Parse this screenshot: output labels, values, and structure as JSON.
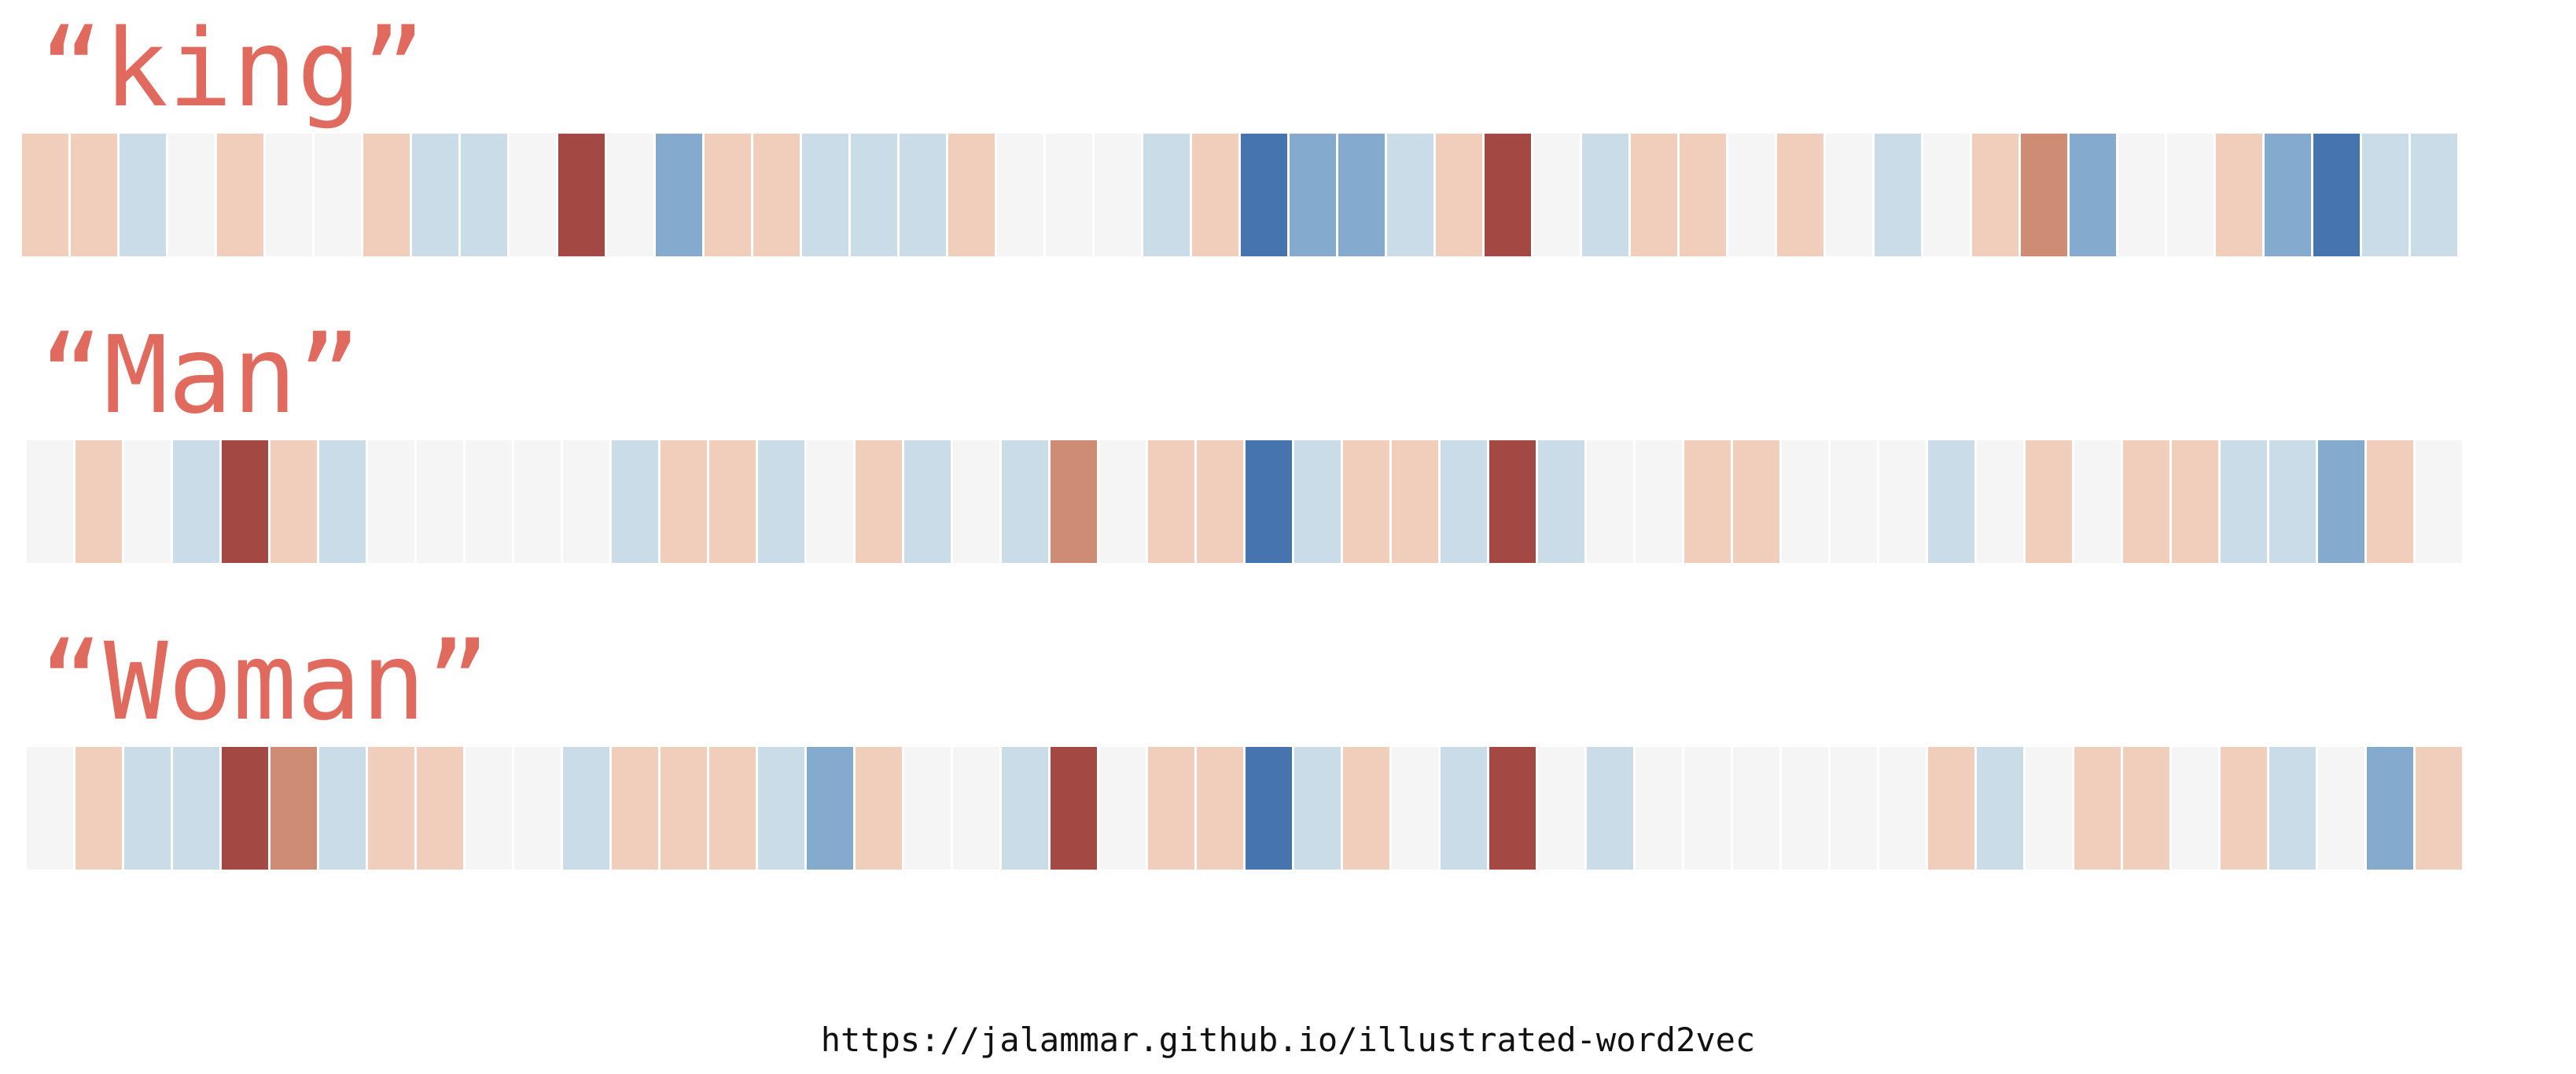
{
  "colors": {
    "c0": "#f5f5f5",
    "p1": "#f0cebb",
    "p2": "#cf8c74",
    "p3": "#a34842",
    "n1": "#cadce8",
    "n2": "#84abcd",
    "n3": "#4674ae",
    "label": "#e06a5e"
  },
  "words": [
    {
      "label": "“king”",
      "cells": [
        "p1",
        "p1",
        "n1",
        "c0",
        "p1",
        "c0",
        "c0",
        "p1",
        "n1",
        "n1",
        "c0",
        "p3",
        "c0",
        "n2",
        "p1",
        "p1",
        "n1",
        "n1",
        "n1",
        "p1",
        "c0",
        "c0",
        "c0",
        "n1",
        "p1",
        "n3",
        "n2",
        "n2",
        "n1",
        "p1",
        "p3",
        "c0",
        "n1",
        "p1",
        "p1",
        "c0",
        "p1",
        "c0",
        "n1",
        "c0",
        "p1",
        "p2",
        "n2",
        "c0",
        "c0",
        "p1",
        "n2",
        "n3",
        "n1",
        "n1"
      ]
    },
    {
      "label": "“Man”",
      "cells": [
        "c0",
        "p1",
        "c0",
        "n1",
        "p3",
        "p1",
        "n1",
        "c0",
        "c0",
        "c0",
        "c0",
        "c0",
        "n1",
        "p1",
        "p1",
        "n1",
        "c0",
        "p1",
        "n1",
        "c0",
        "n1",
        "p2",
        "c0",
        "p1",
        "p1",
        "n3",
        "n1",
        "p1",
        "p1",
        "n1",
        "p3",
        "n1",
        "c0",
        "c0",
        "p1",
        "p1",
        "c0",
        "c0",
        "c0",
        "n1",
        "c0",
        "p1",
        "c0",
        "p1",
        "p1",
        "n1",
        "n1",
        "n2",
        "p1",
        "c0"
      ]
    },
    {
      "label": "“Woman”",
      "cells": [
        "c0",
        "p1",
        "n1",
        "n1",
        "p3",
        "p2",
        "n1",
        "p1",
        "p1",
        "c0",
        "c0",
        "n1",
        "p1",
        "p1",
        "p1",
        "n1",
        "n2",
        "p1",
        "c0",
        "c0",
        "n1",
        "p3",
        "c0",
        "p1",
        "p1",
        "n3",
        "n1",
        "p1",
        "c0",
        "n1",
        "p3",
        "c0",
        "n1",
        "c0",
        "c0",
        "c0",
        "c0",
        "c0",
        "c0",
        "p1",
        "n1",
        "c0",
        "p1",
        "p1",
        "c0",
        "p1",
        "n1",
        "c0",
        "n2",
        "p1"
      ]
    }
  ],
  "footer": {
    "source_url": "https://jalammar.github.io/illustrated-word2vec"
  }
}
